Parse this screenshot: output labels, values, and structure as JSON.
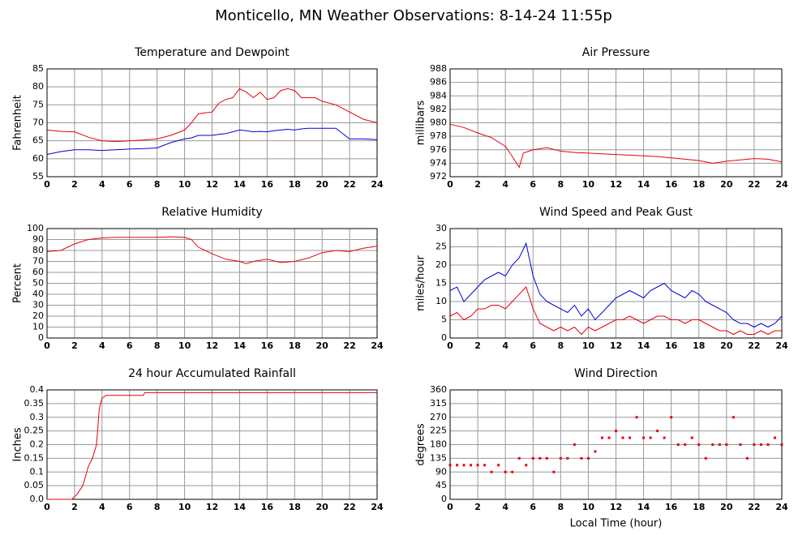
{
  "title": "Monticello, MN Weather Observations: 8-14-24 11:55p",
  "chart_data": [
    {
      "type": "line",
      "title": "Temperature and Dewpoint",
      "y_label": "Fahrenheit",
      "x": [
        0,
        1,
        2,
        3,
        4,
        5,
        6,
        7,
        8,
        9,
        10,
        10.5,
        11,
        12,
        12.5,
        13,
        13.5,
        14,
        14.5,
        15,
        15.5,
        16,
        16.5,
        17,
        17.5,
        18,
        18.5,
        19,
        19.5,
        20,
        21,
        22,
        23,
        24
      ],
      "series": [
        {
          "color": "#e8000b",
          "values": [
            68,
            67.6,
            67.5,
            66,
            65,
            64.8,
            65,
            65.2,
            65.5,
            66.5,
            68,
            70,
            72.5,
            73,
            75.5,
            76.5,
            77,
            79.5,
            78.5,
            77,
            78.5,
            76.5,
            77,
            79,
            79.5,
            79,
            77,
            77,
            77,
            76,
            75,
            73,
            71,
            70
          ]
        },
        {
          "color": "#0000dd",
          "values": [
            61.2,
            62,
            62.5,
            62.5,
            62.3,
            62.5,
            62.7,
            62.8,
            63,
            64.5,
            65.5,
            65.8,
            66.5,
            66.5,
            66.8,
            67,
            67.5,
            68,
            67.8,
            67.5,
            67.6,
            67.5,
            67.8,
            68,
            68.2,
            68,
            68.3,
            68.5,
            68.5,
            68.5,
            68.5,
            65.5,
            65.5,
            65.3
          ]
        }
      ],
      "xlim": [
        0,
        24
      ],
      "xticks": [
        0,
        2,
        4,
        6,
        8,
        10,
        12,
        14,
        16,
        18,
        20,
        22,
        24
      ],
      "ylim": [
        55,
        85
      ],
      "yticks": [
        55,
        60,
        65,
        70,
        75,
        80,
        85
      ],
      "grid": true
    },
    {
      "type": "line",
      "title": "Air Pressure",
      "y_label": "millibars",
      "x": [
        0,
        1,
        2,
        3,
        4,
        4.5,
        5,
        5.3,
        6,
        7,
        8,
        9,
        10,
        11,
        12,
        13,
        14,
        15,
        16,
        17,
        18,
        19,
        20,
        21,
        22,
        23,
        24
      ],
      "series": [
        {
          "color": "#e8000b",
          "values": [
            979.8,
            979.3,
            978.5,
            977.8,
            976.5,
            975,
            973.4,
            975.5,
            976,
            976.3,
            975.8,
            975.6,
            975.5,
            975.4,
            975.3,
            975.2,
            975.1,
            975,
            974.8,
            974.6,
            974.4,
            974,
            974.3,
            974.5,
            974.7,
            974.6,
            974.2
          ]
        }
      ],
      "xlim": [
        0,
        24
      ],
      "xticks": [
        0,
        2,
        4,
        6,
        8,
        10,
        12,
        14,
        16,
        18,
        20,
        22,
        24
      ],
      "ylim": [
        972,
        988
      ],
      "yticks": [
        972,
        974,
        976,
        978,
        980,
        982,
        984,
        986,
        988
      ],
      "grid": true
    },
    {
      "type": "line",
      "title": "Relative Humidity",
      "y_label": "Percent",
      "x": [
        0,
        1,
        2,
        3,
        4,
        5,
        6,
        7,
        8,
        9,
        10,
        10.5,
        11,
        12,
        13,
        14,
        14.5,
        15,
        16,
        17,
        18,
        19,
        20,
        21,
        22,
        23,
        24
      ],
      "series": [
        {
          "color": "#e8000b",
          "values": [
            79,
            80,
            86,
            90,
            91.5,
            92,
            92,
            92,
            92,
            92.5,
            92,
            90,
            83,
            77,
            72,
            70,
            68,
            70,
            72,
            69,
            70,
            73,
            78,
            80,
            79,
            82,
            84
          ]
        }
      ],
      "xlim": [
        0,
        24
      ],
      "xticks": [
        0,
        2,
        4,
        6,
        8,
        10,
        12,
        14,
        16,
        18,
        20,
        22,
        24
      ],
      "ylim": [
        0,
        100
      ],
      "yticks": [
        0,
        10,
        20,
        30,
        40,
        50,
        60,
        70,
        80,
        90,
        100
      ],
      "grid": true
    },
    {
      "type": "line",
      "title": "Wind Speed and Peak Gust",
      "y_label": "miles/hour",
      "x": [
        0,
        0.5,
        1,
        1.5,
        2,
        2.5,
        3,
        3.5,
        4,
        4.5,
        5,
        5.5,
        6,
        6.5,
        7,
        7.5,
        8,
        8.5,
        9,
        9.5,
        10,
        10.5,
        11,
        11.5,
        12,
        12.5,
        13,
        13.5,
        14,
        14.5,
        15,
        15.5,
        16,
        16.5,
        17,
        17.5,
        18,
        18.5,
        19,
        19.5,
        20,
        20.5,
        21,
        21.5,
        22,
        22.5,
        23,
        23.5,
        24
      ],
      "series": [
        {
          "color": "#0000dd",
          "values": [
            13,
            14,
            10,
            12,
            14,
            16,
            17,
            18,
            17,
            20,
            22,
            26,
            17,
            12,
            10,
            9,
            8,
            7,
            9,
            6,
            8,
            5,
            7,
            9,
            11,
            12,
            13,
            12,
            11,
            13,
            14,
            15,
            13,
            12,
            11,
            13,
            12,
            10,
            9,
            8,
            7,
            5,
            4,
            4,
            3,
            4,
            3,
            4,
            6
          ]
        },
        {
          "color": "#e8000b",
          "values": [
            6,
            7,
            5,
            6,
            8,
            8,
            9,
            9,
            8,
            10,
            12,
            14,
            8,
            4,
            3,
            2,
            3,
            2,
            3,
            1,
            3,
            2,
            3,
            4,
            5,
            5,
            6,
            5,
            4,
            5,
            6,
            6,
            5,
            5,
            4,
            5,
            5,
            4,
            3,
            2,
            2,
            1,
            2,
            1,
            1,
            2,
            1,
            2,
            2
          ]
        }
      ],
      "xlim": [
        0,
        24
      ],
      "xticks": [
        0,
        2,
        4,
        6,
        8,
        10,
        12,
        14,
        16,
        18,
        20,
        22,
        24
      ],
      "ylim": [
        0,
        30
      ],
      "yticks": [
        0,
        5,
        10,
        15,
        20,
        25,
        30
      ],
      "grid": true
    },
    {
      "type": "line",
      "title": "24 hour Accumulated Rainfall",
      "y_label": "Inches",
      "x": [
        0,
        1.8,
        2.2,
        2.6,
        3,
        3.3,
        3.6,
        3.8,
        4,
        4.3,
        7,
        7.1,
        24
      ],
      "series": [
        {
          "color": "#e8000b",
          "values": [
            0,
            0,
            0.02,
            0.05,
            0.12,
            0.15,
            0.2,
            0.33,
            0.37,
            0.38,
            0.38,
            0.39,
            0.39
          ]
        }
      ],
      "xlim": [
        0,
        24
      ],
      "xticks": [
        0,
        2,
        4,
        6,
        8,
        10,
        12,
        14,
        16,
        18,
        20,
        22,
        24
      ],
      "ylim": [
        0,
        0.4
      ],
      "yticks": [
        {
          "value": 0,
          "label": "0.0"
        },
        0.05,
        0.1,
        0.15,
        0.2,
        0.25,
        0.3,
        0.35,
        0.4
      ],
      "grid": true
    },
    {
      "type": "scatter",
      "title": "Wind Direction",
      "y_label": "degrees",
      "x_label": "Local Time (hour)",
      "x": [
        0,
        0.5,
        1,
        1.5,
        2,
        2.5,
        3,
        3.5,
        4,
        4.5,
        5,
        5.5,
        6,
        6.5,
        7,
        7.5,
        8,
        8.5,
        9,
        9.5,
        10,
        10.5,
        11,
        11.5,
        12,
        12.5,
        13,
        13.5,
        14,
        14.5,
        15,
        15.5,
        16,
        16.5,
        17,
        17.5,
        18,
        18.5,
        19,
        19.5,
        20,
        20.5,
        21,
        21.5,
        22,
        22.5,
        23,
        23.5,
        24
      ],
      "series": [
        {
          "color": "#e8000b",
          "values": [
            112.5,
            112.5,
            112.5,
            112.5,
            112.5,
            112.5,
            90,
            112.5,
            90,
            90,
            135,
            112.5,
            135,
            135,
            135,
            90,
            135,
            135,
            180,
            135,
            135,
            157.5,
            202.5,
            202.5,
            225,
            202.5,
            202.5,
            270,
            202.5,
            202.5,
            225,
            202.5,
            270,
            180,
            180,
            202.5,
            180,
            135,
            180,
            180,
            180,
            270,
            180,
            135,
            180,
            180,
            180,
            202.5,
            180
          ]
        }
      ],
      "xlim": [
        0,
        24
      ],
      "xticks": [
        0,
        2,
        4,
        6,
        8,
        10,
        12,
        14,
        16,
        18,
        20,
        22,
        24
      ],
      "ylim": [
        0,
        360
      ],
      "yticks": [
        0,
        45,
        90,
        135,
        180,
        225,
        270,
        315,
        360
      ],
      "grid": true
    }
  ]
}
